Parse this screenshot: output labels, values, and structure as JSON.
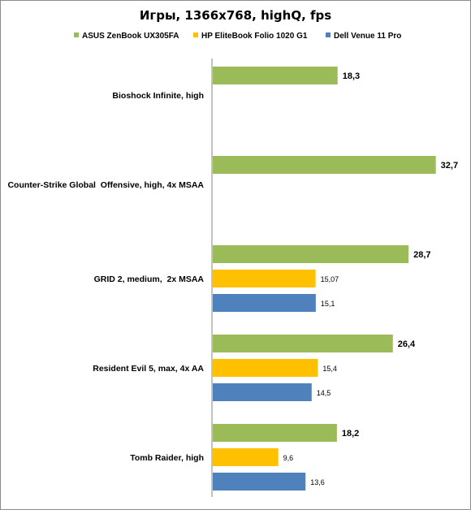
{
  "chart_data": {
    "type": "bar",
    "orientation": "horizontal",
    "title": "Игры, 1366x768, highQ, fps",
    "legend_position": "top",
    "grid": false,
    "xlim": [
      0,
      35
    ],
    "categories": [
      "Bioshock Infinite, high",
      "Counter-Strike Global  Offensive, high, 4x MSAA",
      "GRID 2, medium,  2x MSAA",
      "Resident Evil 5, max, 4x AA",
      "Tomb Raider, high"
    ],
    "series": [
      {
        "name": "ASUS ZenBook UX305FA",
        "color": "#9bbb59",
        "values": [
          18.3,
          32.7,
          28.7,
          26.4,
          18.2
        ],
        "labels": [
          "18,3",
          "32,7",
          "28,7",
          "26,4",
          "18,2"
        ]
      },
      {
        "name": "HP EliteBook Folio 1020 G1",
        "color": "#ffc000",
        "values": [
          null,
          null,
          15.07,
          15.4,
          9.6
        ],
        "labels": [
          "",
          "",
          "15,07",
          "15,4",
          "9,6"
        ]
      },
      {
        "name": "Dell Venue 11 Pro",
        "color": "#4f81bd",
        "values": [
          null,
          null,
          15.1,
          14.5,
          13.6
        ],
        "labels": [
          "",
          "",
          "15,1",
          "14,5",
          "13,6"
        ]
      }
    ]
  }
}
